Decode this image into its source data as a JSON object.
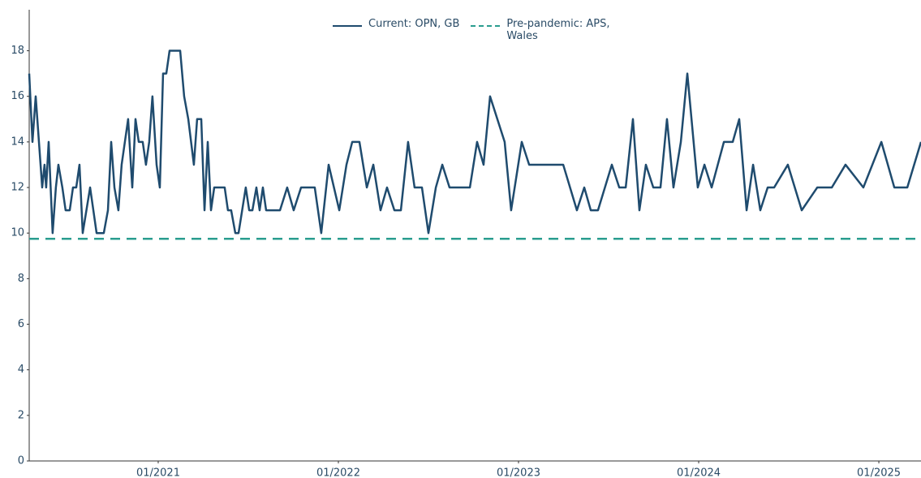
{
  "chart_data": {
    "type": "line",
    "legend": "top-center",
    "grid": false,
    "xlim": [
      2020.284,
      2025.234
    ],
    "xticks": [
      {
        "value": 2021,
        "label": "01/2021"
      },
      {
        "value": 2022,
        "label": "01/2022"
      },
      {
        "value": 2023,
        "label": "01/2023"
      },
      {
        "value": 2024,
        "label": "01/2024"
      },
      {
        "value": 2025,
        "label": "01/2025"
      }
    ],
    "ylim": [
      0,
      19.8
    ],
    "yticks": [
      0,
      2,
      4,
      6,
      8,
      10,
      12,
      14,
      16,
      18
    ],
    "series": [
      {
        "name": "Current: OPN, GB",
        "color": "#1f4b6e",
        "dash": false,
        "x": [
          2020.284,
          2020.302,
          2020.32,
          2020.338,
          2020.356,
          2020.369,
          2020.378,
          2020.392,
          2020.414,
          2020.432,
          2020.446,
          2020.468,
          2020.486,
          2020.509,
          2020.527,
          2020.545,
          2020.563,
          2020.581,
          2020.622,
          2020.658,
          2020.698,
          2020.721,
          2020.739,
          2020.757,
          2020.779,
          2020.797,
          2020.815,
          2020.833,
          2020.856,
          2020.874,
          2020.892,
          2020.914,
          2020.932,
          2020.95,
          2020.968,
          2020.991,
          2021.009,
          2021.027,
          2021.045,
          2021.063,
          2021.122,
          2021.144,
          2021.167,
          2021.198,
          2021.216,
          2021.239,
          2021.257,
          2021.275,
          2021.293,
          2021.311,
          2021.369,
          2021.387,
          2021.405,
          2021.428,
          2021.446,
          2021.486,
          2021.505,
          2021.523,
          2021.545,
          2021.563,
          2021.581,
          2021.599,
          2021.676,
          2021.716,
          2021.752,
          2021.793,
          2021.869,
          2021.905,
          2021.946,
          2022.005,
          2022.045,
          2022.077,
          2022.117,
          2022.158,
          2022.194,
          2022.234,
          2022.27,
          2022.311,
          2022.347,
          2022.387,
          2022.423,
          2022.464,
          2022.5,
          2022.541,
          2022.577,
          2022.617,
          2022.73,
          2022.77,
          2022.806,
          2022.842,
          2022.923,
          2022.959,
          2023.018,
          2023.059,
          2023.248,
          2023.324,
          2023.365,
          2023.401,
          2023.441,
          2023.518,
          2023.559,
          2023.595,
          2023.635,
          2023.671,
          2023.707,
          2023.748,
          2023.788,
          2023.824,
          2023.86,
          2023.901,
          2023.937,
          2023.995,
          2024.032,
          2024.072,
          2024.14,
          2024.189,
          2024.225,
          2024.266,
          2024.302,
          2024.342,
          2024.383,
          2024.419,
          2024.495,
          2024.572,
          2024.658,
          2024.739,
          2024.815,
          2024.914,
          2025.014,
          2025.086,
          2025.158,
          2025.234
        ],
        "values": [
          17,
          14,
          16,
          14,
          12,
          13,
          12,
          14,
          10,
          12,
          13,
          12,
          11,
          11,
          12,
          12,
          13,
          10,
          12,
          10,
          10,
          11,
          14,
          12,
          11,
          13,
          14,
          15,
          12,
          15,
          14,
          14,
          13,
          14,
          16,
          13,
          12,
          17,
          17,
          18,
          18,
          16,
          15,
          13,
          15,
          15,
          11,
          14,
          11,
          12,
          12,
          11,
          11,
          10,
          10,
          12,
          11,
          11,
          12,
          11,
          12,
          11,
          11,
          12,
          11,
          12,
          12,
          10,
          13,
          11,
          13,
          14,
          14,
          12,
          13,
          11,
          12,
          11,
          11,
          14,
          12,
          12,
          10,
          12,
          13,
          12,
          12,
          14,
          13,
          16,
          14,
          11,
          14,
          13,
          13,
          11,
          12,
          11,
          11,
          13,
          12,
          12,
          15,
          11,
          13,
          12,
          12,
          15,
          12,
          14,
          17,
          12,
          13,
          12,
          14,
          14,
          15,
          11,
          13,
          11,
          12,
          12,
          13,
          11,
          12,
          12,
          13,
          12,
          14,
          12,
          12,
          14
        ]
      },
      {
        "name": "Pre-pandemic: APS, Wales",
        "color": "#2a9d8f",
        "dash": true,
        "x": [
          2020.284,
          2025.234
        ],
        "values": [
          9.75,
          9.75
        ]
      }
    ]
  }
}
